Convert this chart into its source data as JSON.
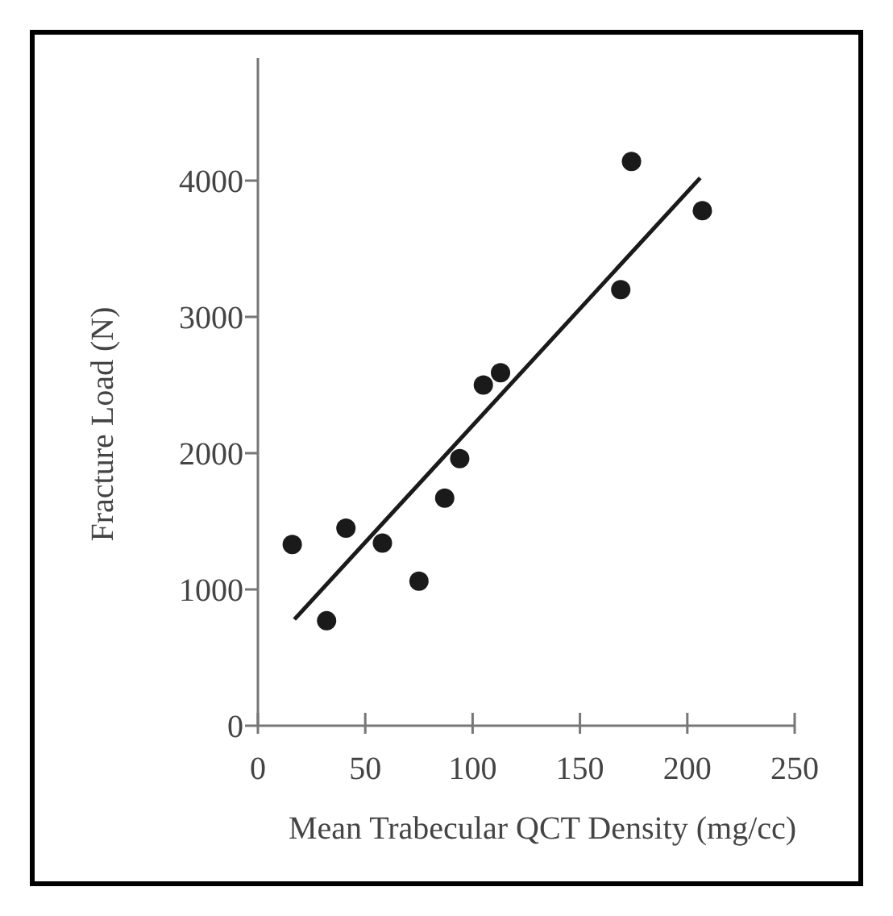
{
  "chart_data": {
    "type": "scatter",
    "xlabel": "Mean Trabecular QCT Density (mg/cc)",
    "ylabel": "Fracture Load (N)",
    "xlim": [
      0,
      250
    ],
    "xticks": [
      0,
      50,
      100,
      150,
      200,
      250
    ],
    "ylim": [
      0,
      4900
    ],
    "yticks": [
      0,
      1000,
      2000,
      3000,
      4000
    ],
    "grid": false,
    "marker": "circle",
    "series": [
      {
        "color": "#1a1a1a",
        "x": [
          16,
          32,
          41,
          58,
          75,
          87,
          94,
          105,
          113,
          169,
          174,
          207
        ],
        "values": [
          1330,
          770,
          1450,
          1340,
          1060,
          1670,
          1960,
          2500,
          2590,
          3200,
          4140,
          3780
        ]
      },
      {
        "type": "line",
        "marker": "none",
        "color": "#1a1a1a",
        "x": [
          17,
          206
        ],
        "values": [
          780,
          4020
        ]
      }
    ]
  }
}
